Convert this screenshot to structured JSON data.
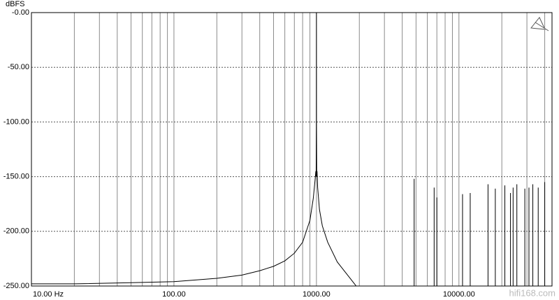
{
  "chart_data": {
    "type": "line",
    "y_label": "dBFS",
    "watermark": "hifi168.com",
    "color": "#000000",
    "xscale": "log",
    "xlim": [
      10,
      45000
    ],
    "xticks": [
      {
        "value": 10,
        "label": "10.00 Hz"
      },
      {
        "value": 100,
        "label": "100.00"
      },
      {
        "value": 1000,
        "label": "1000.00"
      },
      {
        "value": 10000,
        "label": "10000.00"
      }
    ],
    "x_minor_ticks": [
      20,
      30,
      40,
      50,
      60,
      70,
      80,
      90,
      200,
      300,
      400,
      500,
      600,
      700,
      800,
      900,
      2000,
      3000,
      4000,
      5000,
      6000,
      7000,
      8000,
      9000,
      20000,
      30000,
      40000
    ],
    "ylim": [
      -250,
      0
    ],
    "yticks": [
      {
        "value": 0,
        "label": "-0.00"
      },
      {
        "value": -50,
        "label": "-50.00"
      },
      {
        "value": -100,
        "label": "-100.00"
      },
      {
        "value": -150,
        "label": "-150.00"
      },
      {
        "value": -200,
        "label": "-200.00"
      },
      {
        "value": -250,
        "label": "-250.00"
      }
    ],
    "grid": true,
    "x": [
      10,
      20,
      50,
      100,
      200,
      300,
      400,
      500,
      600,
      700,
      800,
      900,
      950,
      980,
      990,
      995,
      999,
      1000,
      1001,
      1005,
      1010,
      1020,
      1050,
      1100,
      1200,
      1400,
      1700,
      1900,
      4850,
      4850,
      4850,
      6700,
      6700,
      6700,
      7000,
      7000,
      7000,
      10600,
      10600,
      10600,
      12000,
      12000,
      12000,
      16000,
      16000,
      16000,
      18000,
      18000,
      18000,
      21000,
      21000,
      21000,
      23000,
      23000,
      23000,
      24000,
      24000,
      24000,
      25500,
      25500,
      25500,
      29000,
      29000,
      29000,
      31000,
      31000,
      31000,
      33000,
      33000,
      33000,
      36000,
      36000,
      36000,
      40000,
      40000,
      40000
    ],
    "values": [
      -248,
      -248,
      -247,
      -246,
      -243,
      -240,
      -236,
      -232,
      -227,
      -220,
      -210,
      -190,
      -170,
      -152,
      -145,
      -150,
      -100,
      0,
      -100,
      -150,
      -145,
      -160,
      -180,
      -195,
      -210,
      -228,
      -242,
      -250,
      -250,
      -152,
      -250,
      -250,
      -160,
      -250,
      -250,
      -169,
      -250,
      -250,
      -166,
      -250,
      -250,
      -165,
      -250,
      -250,
      -157,
      -250,
      -250,
      -161,
      -250,
      -250,
      -158,
      -250,
      -250,
      -165,
      -250,
      -250,
      -160,
      -250,
      -250,
      -157,
      -250,
      -250,
      -161,
      -250,
      -250,
      -160,
      -250,
      -250,
      -157,
      -250,
      -250,
      -160,
      -250,
      -250,
      -155,
      -250
    ]
  }
}
